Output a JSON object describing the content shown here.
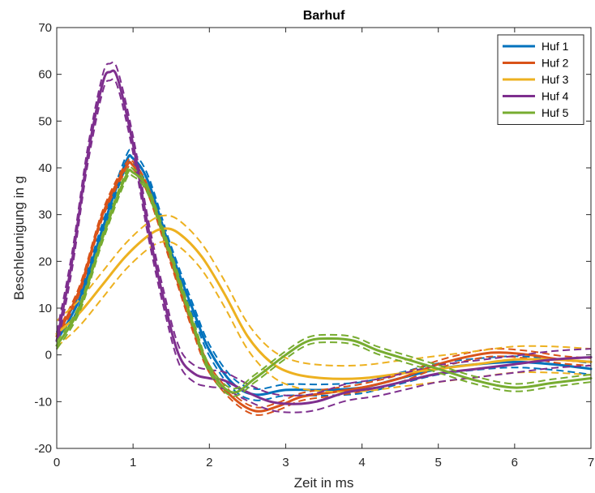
{
  "chart_data": {
    "type": "line",
    "title": "Barhuf",
    "xlabel": "Zeit in ms",
    "ylabel": "Beschleunigung in g",
    "xlim": [
      0,
      7
    ],
    "ylim": [
      -20,
      70
    ],
    "xticks": [
      0,
      1,
      2,
      3,
      4,
      5,
      6,
      7
    ],
    "yticks": [
      -20,
      -10,
      0,
      10,
      20,
      30,
      40,
      50,
      60,
      70
    ],
    "grid": false,
    "legend_position": "top-right",
    "series": [
      {
        "name": "Huf 1",
        "color": "#0072BD",
        "x": [
          0,
          0.3,
          0.6,
          0.9,
          1.0,
          1.2,
          1.5,
          1.8,
          2.0,
          2.3,
          2.6,
          3.0,
          3.5,
          4.0,
          4.5,
          5.0,
          5.5,
          6.0,
          6.5,
          7.0
        ],
        "y": [
          3,
          12,
          27,
          41,
          42,
          37,
          22,
          9,
          1,
          -6,
          -8.5,
          -7.5,
          -7.5,
          -7,
          -5,
          -3,
          -2,
          -1.5,
          -2,
          -3
        ],
        "band": 1.2
      },
      {
        "name": "Huf 2",
        "color": "#D95319",
        "x": [
          0,
          0.3,
          0.6,
          0.9,
          1.0,
          1.2,
          1.5,
          1.8,
          2.0,
          2.3,
          2.6,
          2.9,
          3.2,
          3.6,
          4.0,
          4.5,
          5.0,
          5.5,
          5.8,
          6.2,
          6.6,
          7.0
        ],
        "y": [
          4,
          14,
          30,
          40,
          40.5,
          35,
          20,
          5,
          -3,
          -9,
          -12,
          -11,
          -9,
          -8,
          -7,
          -5,
          -2,
          0,
          0.5,
          0,
          -1,
          -1.5
        ],
        "band": 0.8
      },
      {
        "name": "Huf 3",
        "color": "#EDB120",
        "x": [
          0,
          0.3,
          0.6,
          0.9,
          1.2,
          1.4,
          1.6,
          1.9,
          2.2,
          2.5,
          2.8,
          3.1,
          3.5,
          4.0,
          4.5,
          5.0,
          5.5,
          6.0,
          6.5,
          7.0
        ],
        "y": [
          4.5,
          9,
          15,
          21,
          25.5,
          27,
          26,
          21,
          13,
          4,
          -1.5,
          -4,
          -5,
          -5,
          -4,
          -3,
          -2,
          -1,
          -1,
          -1.5
        ],
        "band": 2.8
      },
      {
        "name": "Huf 4",
        "color": "#7E2F8E",
        "x": [
          0,
          0.2,
          0.4,
          0.6,
          0.7,
          0.8,
          1.0,
          1.2,
          1.4,
          1.6,
          1.8,
          2.0,
          2.2,
          2.5,
          2.8,
          3.1,
          3.4,
          3.8,
          4.2,
          4.6,
          5.0,
          5.5,
          6.0,
          6.5,
          7.0
        ],
        "y": [
          3,
          20,
          42,
          58,
          60.5,
          59,
          45,
          27,
          12,
          0,
          -4,
          -5,
          -5.5,
          -8,
          -10,
          -10.5,
          -10,
          -8,
          -7,
          -5.5,
          -4,
          -3,
          -2,
          -1,
          -0.5
        ],
        "band": 1.8
      },
      {
        "name": "Huf 5",
        "color": "#77AC30",
        "x": [
          0,
          0.3,
          0.6,
          0.9,
          1.0,
          1.2,
          1.5,
          1.8,
          2.0,
          2.3,
          2.6,
          3.0,
          3.3,
          3.6,
          3.9,
          4.2,
          4.6,
          5.0,
          5.5,
          6.0,
          6.5,
          7.0
        ],
        "y": [
          2,
          10,
          25,
          38,
          39,
          35,
          21,
          6,
          -3,
          -8,
          -5,
          0,
          3,
          3.5,
          3,
          1,
          -1,
          -3,
          -5.5,
          -7,
          -6,
          -5
        ],
        "band": 0.8
      }
    ]
  }
}
